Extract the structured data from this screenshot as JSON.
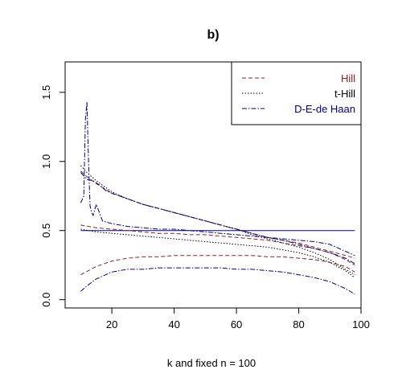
{
  "chart_data": {
    "type": "line",
    "title": "b)",
    "xlabel": "k and fixed n = 100",
    "ylabel": "",
    "xlim": [
      5,
      100
    ],
    "ylim": [
      -0.06,
      1.72
    ],
    "x_ticks": [
      20,
      40,
      60,
      80,
      100
    ],
    "y_ticks": [
      0.0,
      0.5,
      1.0,
      1.5
    ],
    "x_tick_labels": [
      "20",
      "40",
      "60",
      "80",
      "100"
    ],
    "y_tick_labels": [
      "0.0",
      "0.5",
      "1.0",
      "1.5"
    ],
    "grid": false,
    "legend_position": "top-right",
    "legend": [
      {
        "label": "Hill",
        "color": "#8b2323",
        "dash": "dashed"
      },
      {
        "label": "t-Hill",
        "color": "#000000",
        "dash": "dotted"
      },
      {
        "label": "D-E-de Haan",
        "color": "#00008b",
        "dash": "dotdash"
      }
    ],
    "reference_line": {
      "y": 0.5,
      "x": [
        10,
        98
      ],
      "color": "#00008b"
    },
    "series": [
      {
        "legend": 0,
        "color": "#8b2323",
        "dash": "dashed",
        "x": [
          10,
          12,
          15,
          20,
          25,
          30,
          35,
          40,
          45,
          50,
          55,
          60,
          65,
          70,
          75,
          80,
          85,
          90,
          95,
          98
        ],
        "y": [
          0.93,
          0.89,
          0.84,
          0.77,
          0.73,
          0.69,
          0.66,
          0.63,
          0.6,
          0.57,
          0.54,
          0.51,
          0.48,
          0.45,
          0.43,
          0.41,
          0.38,
          0.35,
          0.32,
          0.3
        ]
      },
      {
        "legend": 0,
        "color": "#8b2323",
        "dash": "dashed",
        "x": [
          10,
          15,
          20,
          25,
          30,
          35,
          40,
          45,
          50,
          55,
          60,
          65,
          70,
          75,
          80,
          85,
          90,
          95,
          98
        ],
        "y": [
          0.54,
          0.52,
          0.51,
          0.5,
          0.49,
          0.48,
          0.48,
          0.47,
          0.47,
          0.46,
          0.45,
          0.44,
          0.43,
          0.41,
          0.39,
          0.37,
          0.34,
          0.29,
          0.25
        ]
      },
      {
        "legend": 0,
        "color": "#8b2323",
        "dash": "dashed",
        "x": [
          10,
          15,
          20,
          25,
          30,
          35,
          40,
          45,
          50,
          55,
          60,
          65,
          70,
          75,
          80,
          85,
          90,
          95,
          98
        ],
        "y": [
          0.18,
          0.24,
          0.28,
          0.3,
          0.31,
          0.31,
          0.32,
          0.32,
          0.32,
          0.32,
          0.32,
          0.32,
          0.31,
          0.31,
          0.3,
          0.29,
          0.27,
          0.24,
          0.2
        ]
      },
      {
        "legend": 1,
        "color": "#000000",
        "dash": "dotted",
        "x": [
          10,
          12,
          15,
          20,
          25,
          30,
          35,
          40,
          45,
          50,
          55,
          60,
          65,
          70,
          75,
          80,
          85,
          90,
          95,
          98
        ],
        "y": [
          0.97,
          0.92,
          0.86,
          0.78,
          0.73,
          0.69,
          0.66,
          0.63,
          0.6,
          0.57,
          0.54,
          0.51,
          0.47,
          0.44,
          0.41,
          0.38,
          0.34,
          0.29,
          0.22,
          0.18
        ]
      },
      {
        "legend": 1,
        "color": "#000000",
        "dash": "dotted",
        "x": [
          10,
          15,
          20,
          25,
          30,
          35,
          40,
          45,
          50,
          55,
          60,
          65,
          70,
          75,
          80,
          85,
          90,
          95,
          98
        ],
        "y": [
          0.51,
          0.49,
          0.48,
          0.47,
          0.46,
          0.45,
          0.44,
          0.43,
          0.42,
          0.41,
          0.4,
          0.39,
          0.38,
          0.36,
          0.34,
          0.31,
          0.27,
          0.21,
          0.16
        ]
      },
      {
        "legend": 2,
        "color": "#00008b",
        "dash": "dotdash",
        "x": [
          10,
          11,
          11.5,
          12,
          12.5,
          13,
          13.5,
          14,
          15,
          16,
          17,
          20,
          25,
          30,
          35,
          40,
          45,
          50,
          55,
          60,
          65,
          70,
          75,
          80,
          85,
          90,
          95,
          98
        ],
        "y": [
          0.7,
          0.75,
          1.3,
          1.43,
          1.0,
          0.68,
          0.63,
          0.61,
          0.69,
          0.63,
          0.57,
          0.55,
          0.53,
          0.52,
          0.51,
          0.51,
          0.5,
          0.49,
          0.48,
          0.47,
          0.46,
          0.45,
          0.44,
          0.43,
          0.42,
          0.4,
          0.35,
          0.32
        ]
      },
      {
        "legend": 2,
        "color": "#00008b",
        "dash": "dotdash",
        "x": [
          10,
          12,
          14,
          16,
          18,
          20,
          25,
          30,
          35,
          40,
          45,
          50,
          55,
          60,
          65,
          70,
          75,
          80,
          85,
          90,
          95,
          98
        ],
        "y": [
          0.92,
          0.87,
          0.86,
          0.83,
          0.79,
          0.77,
          0.73,
          0.69,
          0.66,
          0.63,
          0.6,
          0.57,
          0.54,
          0.51,
          0.48,
          0.45,
          0.43,
          0.4,
          0.37,
          0.34,
          0.3,
          0.26
        ]
      },
      {
        "legend": 2,
        "color": "#00008b",
        "dash": "dotdash",
        "x": [
          10,
          12,
          15,
          20,
          25,
          30,
          35,
          40,
          45,
          50,
          55,
          60,
          65,
          70,
          75,
          80,
          85,
          90,
          95,
          98
        ],
        "y": [
          0.06,
          0.1,
          0.15,
          0.2,
          0.22,
          0.22,
          0.23,
          0.23,
          0.23,
          0.23,
          0.23,
          0.22,
          0.22,
          0.21,
          0.2,
          0.18,
          0.16,
          0.13,
          0.08,
          0.04
        ]
      }
    ]
  }
}
